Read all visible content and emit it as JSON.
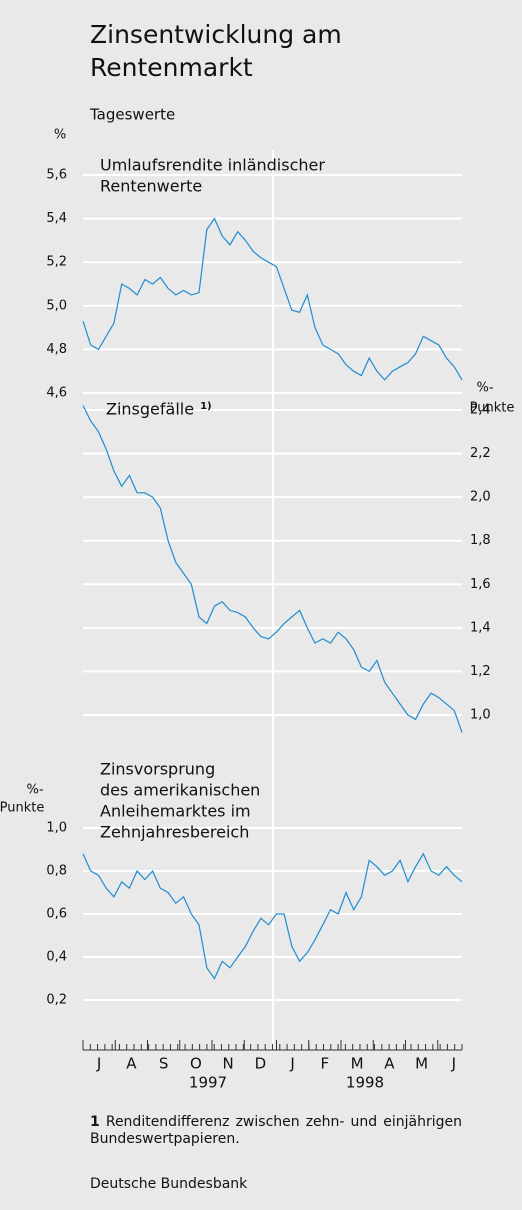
{
  "title": [
    "Zinsentwicklung am",
    "Rentenmarkt"
  ],
  "subtitle": "Tageswerte",
  "x_labels": {
    "months": [
      "J",
      "A",
      "S",
      "O",
      "N",
      "D",
      "J",
      "F",
      "M",
      "A",
      "M",
      "J"
    ],
    "years": [
      "1997",
      "1998"
    ]
  },
  "chart_data": [
    {
      "type": "line",
      "label": [
        "Umlaufsrendite inländischer",
        "Rentenwerte"
      ],
      "unit": [
        "%"
      ],
      "axis_side": "left",
      "grid": true,
      "color": "#1f8dd0",
      "ylim": [
        4.6,
        5.6
      ],
      "yticks": [
        {
          "value": 4.6,
          "label": "4,6"
        },
        {
          "value": 4.8,
          "label": "4,8"
        },
        {
          "value": 5.0,
          "label": "5,0"
        },
        {
          "value": 5.2,
          "label": "5,2"
        },
        {
          "value": 5.4,
          "label": "5,4"
        },
        {
          "value": 5.6,
          "label": "5,6"
        }
      ],
      "values": [
        4.93,
        4.82,
        4.8,
        4.86,
        4.92,
        5.1,
        5.08,
        5.05,
        5.12,
        5.1,
        5.13,
        5.08,
        5.05,
        5.07,
        5.05,
        5.06,
        5.35,
        5.4,
        5.32,
        5.28,
        5.34,
        5.3,
        5.25,
        5.22,
        5.2,
        5.18,
        5.08,
        4.98,
        4.97,
        5.05,
        4.9,
        4.82,
        4.8,
        4.78,
        4.73,
        4.7,
        4.68,
        4.76,
        4.7,
        4.66,
        4.7,
        4.72,
        4.74,
        4.78,
        4.86,
        4.84,
        4.82,
        4.76,
        4.72,
        4.66
      ]
    },
    {
      "type": "line",
      "label": [
        "Zinsgefälle"
      ],
      "note": "1)",
      "unit": [
        "%-",
        "Punkte"
      ],
      "axis_side": "right",
      "grid": true,
      "color": "#1f8dd0",
      "ylim": [
        1.0,
        2.4
      ],
      "yticks": [
        {
          "value": 1.0,
          "label": "1,0"
        },
        {
          "value": 1.2,
          "label": "1,2"
        },
        {
          "value": 1.4,
          "label": "1,4"
        },
        {
          "value": 1.6,
          "label": "1,6"
        },
        {
          "value": 1.8,
          "label": "1,8"
        },
        {
          "value": 2.0,
          "label": "2,0"
        },
        {
          "value": 2.2,
          "label": "2,2"
        },
        {
          "value": 2.4,
          "label": "2,4"
        }
      ],
      "values": [
        2.42,
        2.35,
        2.3,
        2.22,
        2.12,
        2.05,
        2.1,
        2.02,
        2.02,
        2.0,
        1.95,
        1.8,
        1.7,
        1.65,
        1.6,
        1.45,
        1.42,
        1.5,
        1.52,
        1.48,
        1.47,
        1.45,
        1.4,
        1.36,
        1.35,
        1.38,
        1.42,
        1.45,
        1.48,
        1.4,
        1.33,
        1.35,
        1.33,
        1.38,
        1.35,
        1.3,
        1.22,
        1.2,
        1.25,
        1.15,
        1.1,
        1.05,
        1.0,
        0.98,
        1.05,
        1.1,
        1.08,
        1.05,
        1.02,
        0.92
      ]
    },
    {
      "type": "line",
      "label": [
        "Zinsvorsprung",
        "des amerikanischen",
        "Anleihemarktes im",
        "Zehnjahresbereich"
      ],
      "unit": [
        "%-",
        "Punkte"
      ],
      "axis_side": "left",
      "grid": true,
      "color": "#1f8dd0",
      "ylim": [
        0,
        1.0
      ],
      "yticks": [
        {
          "value": 0.2,
          "label": "0,2"
        },
        {
          "value": 0.4,
          "label": "0,4"
        },
        {
          "value": 0.6,
          "label": "0,6"
        },
        {
          "value": 0.8,
          "label": "0,8"
        },
        {
          "value": 1.0,
          "label": "1,0"
        }
      ],
      "values": [
        0.88,
        0.8,
        0.78,
        0.72,
        0.68,
        0.75,
        0.72,
        0.8,
        0.76,
        0.8,
        0.72,
        0.7,
        0.65,
        0.68,
        0.6,
        0.55,
        0.35,
        0.3,
        0.38,
        0.35,
        0.4,
        0.45,
        0.52,
        0.58,
        0.55,
        0.6,
        0.6,
        0.45,
        0.38,
        0.42,
        0.48,
        0.55,
        0.62,
        0.6,
        0.7,
        0.62,
        0.68,
        0.85,
        0.82,
        0.78,
        0.8,
        0.85,
        0.75,
        0.82,
        0.88,
        0.8,
        0.78,
        0.82,
        0.78,
        0.75
      ]
    }
  ],
  "footnote": {
    "marker": "1",
    "text": "Renditendifferenz zwischen zehn- und einjährigen Bundeswertpapieren."
  },
  "source": "Deutsche Bundesbank"
}
